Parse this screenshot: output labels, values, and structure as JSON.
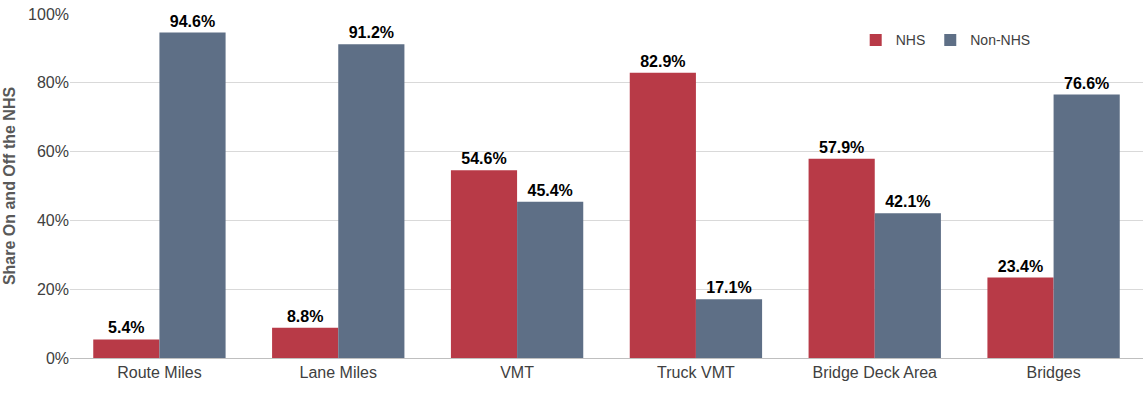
{
  "chart_data": {
    "type": "bar",
    "y_label": "Share On and Off the NHS",
    "categories": [
      "Route Miles",
      "Lane Miles",
      "VMT",
      "Truck VMT",
      "Bridge Deck Area",
      "Bridges"
    ],
    "series": [
      {
        "name": "NHS",
        "color": "#b83a47",
        "values": [
          5.4,
          8.8,
          54.6,
          82.9,
          57.9,
          23.4
        ],
        "value_labels": [
          "5.4%",
          "8.8%",
          "54.6%",
          "82.9%",
          "57.9%",
          "23.4%"
        ]
      },
      {
        "name": "Non-NHS",
        "color": "#5e6f86",
        "values": [
          94.6,
          91.2,
          45.4,
          17.1,
          42.1,
          76.6
        ],
        "value_labels": [
          "94.6%",
          "91.2%",
          "45.4%",
          "17.1%",
          "42.1%",
          "76.6%"
        ]
      }
    ],
    "ylim": [
      0,
      100
    ],
    "yticks": [
      {
        "value": 0,
        "label": "0%"
      },
      {
        "value": 20,
        "label": "20%"
      },
      {
        "value": 40,
        "label": "40%"
      },
      {
        "value": 60,
        "label": "60%"
      },
      {
        "value": 80,
        "label": "80%"
      },
      {
        "value": 100,
        "label": "100%"
      }
    ],
    "grid": true,
    "legend": "top-right",
    "data_labels": true
  }
}
